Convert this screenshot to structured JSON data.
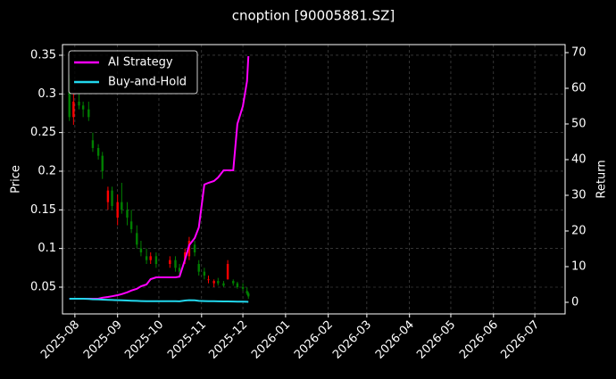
{
  "chart_data": {
    "type": "candlestick",
    "title": "cnoption [90005881.SZ]",
    "ylabel": "Price",
    "y2label": "Return",
    "x": [
      "2025-07-28",
      "2025-07-31",
      "2025-08-04",
      "2025-08-07",
      "2025-08-11",
      "2025-08-14",
      "2025-08-18",
      "2025-08-21",
      "2025-08-25",
      "2025-08-28",
      "2025-09-01",
      "2025-09-04",
      "2025-09-08",
      "2025-09-11",
      "2025-09-15",
      "2025-09-18",
      "2025-09-22",
      "2025-09-25",
      "2025-09-29",
      "2025-10-09",
      "2025-10-13",
      "2025-10-16",
      "2025-10-20",
      "2025-10-23",
      "2025-10-27",
      "2025-10-30",
      "2025-11-03",
      "2025-11-06",
      "2025-11-10",
      "2025-11-13",
      "2025-11-17",
      "2025-11-20",
      "2025-11-24",
      "2025-11-27",
      "2025-12-01",
      "2025-12-04",
      "2025-12-05"
    ],
    "open": [
      0.32,
      0.27,
      0.29,
      0.285,
      0.28,
      0.24,
      0.23,
      0.22,
      0.16,
      0.175,
      0.14,
      0.16,
      0.15,
      0.135,
      0.12,
      0.1,
      0.09,
      0.085,
      0.09,
      0.08,
      0.085,
      0.075,
      0.085,
      0.09,
      0.105,
      0.08,
      0.07,
      0.06,
      0.055,
      0.058,
      0.055,
      0.06,
      0.058,
      0.055,
      0.05,
      0.045,
      0.042
    ],
    "high": [
      0.325,
      0.3,
      0.3,
      0.29,
      0.29,
      0.25,
      0.235,
      0.225,
      0.18,
      0.18,
      0.17,
      0.185,
      0.16,
      0.15,
      0.13,
      0.11,
      0.1,
      0.095,
      0.095,
      0.09,
      0.09,
      0.08,
      0.1,
      0.115,
      0.11,
      0.085,
      0.075,
      0.065,
      0.06,
      0.062,
      0.058,
      0.085,
      0.06,
      0.057,
      0.055,
      0.05,
      0.044
    ],
    "low": [
      0.265,
      0.26,
      0.28,
      0.27,
      0.265,
      0.225,
      0.215,
      0.19,
      0.15,
      0.15,
      0.13,
      0.145,
      0.13,
      0.12,
      0.1,
      0.09,
      0.08,
      0.08,
      0.075,
      0.075,
      0.07,
      0.065,
      0.08,
      0.085,
      0.09,
      0.065,
      0.06,
      0.055,
      0.05,
      0.052,
      0.05,
      0.06,
      0.052,
      0.048,
      0.045,
      0.04,
      0.035
    ],
    "close": [
      0.27,
      0.29,
      0.285,
      0.28,
      0.27,
      0.23,
      0.22,
      0.2,
      0.175,
      0.155,
      0.16,
      0.15,
      0.14,
      0.125,
      0.105,
      0.095,
      0.085,
      0.09,
      0.08,
      0.085,
      0.075,
      0.07,
      0.095,
      0.11,
      0.095,
      0.07,
      0.065,
      0.06,
      0.058,
      0.055,
      0.052,
      0.08,
      0.055,
      0.05,
      0.048,
      0.042,
      0.038
    ],
    "up_color": "#ff0000",
    "down_color": "#008000",
    "series": [
      {
        "name": "AI Strategy",
        "color": "#ff00ff",
        "axis": "y2",
        "values": [
          1,
          1,
          1,
          1,
          1,
          1,
          1,
          1.3,
          1.5,
          1.7,
          2,
          2.3,
          2.8,
          3.3,
          3.8,
          4.5,
          5,
          6.5,
          7,
          7,
          7,
          7.2,
          12,
          16,
          18,
          21,
          33,
          33.5,
          34,
          35,
          37,
          37,
          37,
          50,
          55,
          62,
          69
        ]
      },
      {
        "name": "Buy-and-Hold",
        "color": "#22d8ee",
        "axis": "y2",
        "values": [
          1,
          1,
          1,
          1,
          0.95,
          0.85,
          0.8,
          0.75,
          0.7,
          0.65,
          0.6,
          0.55,
          0.5,
          0.45,
          0.4,
          0.35,
          0.3,
          0.3,
          0.3,
          0.3,
          0.3,
          0.28,
          0.5,
          0.6,
          0.55,
          0.4,
          0.35,
          0.3,
          0.3,
          0.28,
          0.25,
          0.25,
          0.22,
          0.2,
          0.18,
          0.15,
          0.12
        ]
      }
    ],
    "xlim": [
      "2025-07-23",
      "2026-07-23"
    ],
    "xticks": [
      {
        "value": "2025-08-01",
        "label": "2025-08"
      },
      {
        "value": "2025-09-01",
        "label": "2025-09"
      },
      {
        "value": "2025-10-01",
        "label": "2025-10"
      },
      {
        "value": "2025-11-01",
        "label": "2025-11"
      },
      {
        "value": "2025-12-01",
        "label": "2025-12"
      },
      {
        "value": "2026-01-01",
        "label": "2026-01"
      },
      {
        "value": "2026-02-01",
        "label": "2026-02"
      },
      {
        "value": "2026-03-01",
        "label": "2026-03"
      },
      {
        "value": "2026-04-01",
        "label": "2026-04"
      },
      {
        "value": "2026-05-01",
        "label": "2026-05"
      },
      {
        "value": "2026-06-01",
        "label": "2026-06"
      },
      {
        "value": "2026-07-01",
        "label": "2026-07"
      }
    ],
    "ylim": [
      0.0154,
      0.3638
    ],
    "yticks": [
      0.05,
      0.1,
      0.15,
      0.2,
      0.25,
      0.3,
      0.35
    ],
    "y2lim": [
      -3.25,
      72.25
    ],
    "y2ticks": [
      0,
      10,
      20,
      30,
      40,
      50,
      60,
      70
    ],
    "grid": true,
    "legend": "upper left"
  }
}
